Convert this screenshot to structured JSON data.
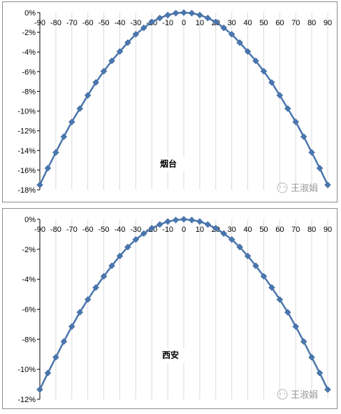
{
  "chart_data": [
    {
      "type": "line",
      "title": "烟台",
      "x": [
        -90,
        -85,
        -80,
        -75,
        -70,
        -65,
        -60,
        -55,
        -50,
        -45,
        -40,
        -35,
        -30,
        -25,
        -20,
        -15,
        -10,
        -5,
        0,
        5,
        10,
        15,
        20,
        25,
        30,
        35,
        40,
        45,
        50,
        55,
        60,
        65,
        70,
        75,
        80,
        85,
        90
      ],
      "values": [
        -17.5,
        -15.8,
        -14.2,
        -12.6,
        -11.1,
        -9.75,
        -8.4,
        -7.1,
        -5.95,
        -4.9,
        -3.95,
        -3.05,
        -2.2,
        -1.55,
        -0.95,
        -0.55,
        -0.25,
        -0.05,
        0,
        -0.05,
        -0.25,
        -0.55,
        -0.95,
        -1.55,
        -2.2,
        -3.05,
        -3.95,
        -4.9,
        -5.95,
        -7.1,
        -8.4,
        -9.75,
        -11.1,
        -12.6,
        -14.2,
        -15.8,
        -17.5
      ],
      "x_ticks": [
        "-90",
        "-80",
        "-70",
        "-60",
        "-50",
        "-40",
        "-30",
        "-20",
        "-10",
        "0",
        "10",
        "20",
        "30",
        "40",
        "50",
        "60",
        "70",
        "80",
        "90"
      ],
      "y_ticks": [
        "0%",
        "-2%",
        "-4%",
        "-6%",
        "-8%",
        "-10%",
        "-12%",
        "-14%",
        "-16%",
        "-18%"
      ],
      "ylim": [
        -18,
        0
      ],
      "xlim": [
        -90,
        90
      ],
      "grid": "vertical",
      "color": "#4a76ad",
      "marker": "diamond",
      "watermark": "王淑娟"
    },
    {
      "type": "line",
      "title": "西安",
      "x": [
        -90,
        -85,
        -80,
        -75,
        -70,
        -65,
        -60,
        -55,
        -50,
        -45,
        -40,
        -35,
        -30,
        -25,
        -20,
        -15,
        -10,
        -5,
        0,
        5,
        10,
        15,
        20,
        25,
        30,
        35,
        40,
        45,
        50,
        55,
        60,
        65,
        70,
        75,
        80,
        85,
        90
      ],
      "values": [
        -11.35,
        -10.25,
        -9.2,
        -8.15,
        -7.15,
        -6.2,
        -5.35,
        -4.55,
        -3.8,
        -3.1,
        -2.45,
        -1.85,
        -1.35,
        -0.95,
        -0.6,
        -0.35,
        -0.15,
        -0.05,
        0,
        -0.05,
        -0.15,
        -0.35,
        -0.6,
        -0.95,
        -1.35,
        -1.85,
        -2.45,
        -3.1,
        -3.8,
        -4.55,
        -5.35,
        -6.2,
        -7.15,
        -8.15,
        -9.2,
        -10.25,
        -11.35
      ],
      "x_ticks": [
        "-90",
        "-80",
        "-70",
        "-60",
        "-50",
        "-40",
        "-30",
        "-20",
        "-10",
        "0",
        "10",
        "20",
        "30",
        "40",
        "50",
        "60",
        "70",
        "80",
        "90"
      ],
      "y_ticks": [
        "0%",
        "-2%",
        "-4%",
        "-6%",
        "-8%",
        "-10%",
        "-12%"
      ],
      "ylim": [
        -12,
        0
      ],
      "xlim": [
        -90,
        90
      ],
      "grid": "vertical",
      "color": "#4a76ad",
      "marker": "diamond",
      "watermark": "王淑娟"
    }
  ]
}
